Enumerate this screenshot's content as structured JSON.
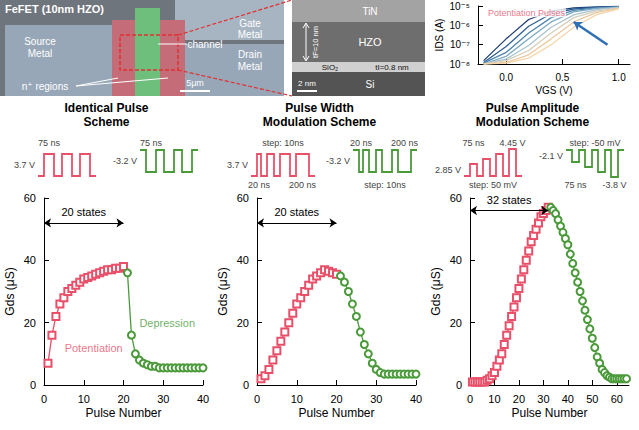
{
  "figure": {
    "sem_image": {
      "title": "FeFET (10nm HZO)",
      "gate": "Gate Metal",
      "channel": "channel",
      "source": "Source Metal",
      "drain": "Drain Metal",
      "n_regions": "n⁺ regions",
      "scale_bar": "5μm"
    },
    "tem_image": {
      "layers": [
        "TiN",
        "HZO",
        "SiO₂",
        "Si"
      ],
      "ferroelectric_thickness": "tF=10 nm",
      "interlayer_thickness": "tI=0.8 nm",
      "scale_bar": "2 nm"
    },
    "pulse_schemes": [
      {
        "title": "Identical Pulse Scheme",
        "scheme": "identical",
        "potentiation": {
          "color": "#e8506a",
          "amplitude": "3.7 V",
          "width": "75 ns"
        },
        "depression": {
          "color": "#4a9a3a",
          "amplitude": "-3.2 V",
          "width": "75 ns"
        }
      },
      {
        "title": "Pulse Width Modulation Scheme",
        "scheme": "width",
        "potentiation": {
          "color": "#e8506a",
          "amplitude": "3.7 V",
          "first_width": "20 ns",
          "last_width": "200 ns",
          "step": "step: 10ns"
        },
        "depression": {
          "color": "#4a9a3a",
          "amplitude": "-3.2 V",
          "first_width": "20 ns",
          "last_width": "200 ns",
          "step": "step: 10ns"
        }
      },
      {
        "title": "Pulse Amplitude Modulation Scheme",
        "scheme": "amplitude",
        "potentiation": {
          "color": "#e8506a",
          "amplitude": "2.85 V",
          "last_amplitude": "4.45 V",
          "width": "75 ns",
          "step": "step: 50 mV"
        },
        "depression": {
          "color": "#4a9a3a",
          "amplitude": "-2.1 V",
          "last_amplitude": "-3.8 V",
          "width": "75 ns",
          "step": "step: -50 mV"
        }
      }
    ]
  },
  "chart_data": [
    {
      "type": "line",
      "log": "y",
      "xlabel": "VGS (V)",
      "ylabel": "IDS (A)",
      "xlim": [
        -0.25,
        1.1
      ],
      "xticks": [
        {
          "value": 0,
          "label": "0.0"
        },
        0.5,
        {
          "value": 1,
          "label": "1.0"
        }
      ],
      "ylim": [
        1e-08,
        1e-05
      ],
      "yticks": [
        {
          "value": 1e-08,
          "label": "10⁻⁸"
        },
        {
          "value": 1e-07,
          "label": "10⁻⁷"
        },
        {
          "value": 1e-06,
          "label": "10⁻⁶"
        },
        {
          "value": 1e-05,
          "label": "10⁻⁵"
        }
      ],
      "grid": false,
      "x": [
        -0.2,
        0,
        0.2,
        0.4,
        0.6,
        0.8,
        1.0
      ],
      "series": [
        {
          "color": "#1f3f73",
          "values": [
            1.5e-08,
            2e-07,
            2e-06,
            5.5e-06,
            8e-06,
            9e-06,
            9.5e-06
          ]
        },
        {
          "color": "#2c5f93",
          "values": [
            1.2e-08,
            8e-08,
            9e-07,
            4e-06,
            7e-06,
            8.5e-06,
            9.2e-06
          ]
        },
        {
          "color": "#4f86b0",
          "values": [
            1.1e-08,
            4e-08,
            4e-07,
            2.5e-06,
            6e-06,
            8e-06,
            9e-06
          ]
        },
        {
          "color": "#7ba8c4",
          "values": [
            1e-08,
            2.5e-08,
            2e-07,
            1.5e-06,
            5e-06,
            7.5e-06,
            8.8e-06
          ]
        },
        {
          "color": "#a9c3cf",
          "values": [
            1e-08,
            1.8e-08,
            9e-08,
            8e-07,
            3.5e-06,
            6.5e-06,
            8.5e-06
          ]
        },
        {
          "color": "#d4cfb9",
          "values": [
            1e-08,
            1.5e-08,
            5e-08,
            4e-07,
            2.5e-06,
            5.5e-06,
            8e-06
          ]
        },
        {
          "color": "#eec9a0",
          "values": [
            1e-08,
            1.2e-08,
            3e-08,
            2e-07,
            1.5e-06,
            4.5e-06,
            7.5e-06
          ]
        },
        {
          "color": "#f5d6ad",
          "values": [
            1e-08,
            1.1e-08,
            2e-08,
            1e-07,
            8e-07,
            3.5e-06,
            7e-06
          ]
        }
      ],
      "annotations": [
        {
          "text": "Potentiation Pulses",
          "x": 0.18,
          "y": 4.5e-06,
          "color": "#e8506a",
          "arrow": {
            "x": [
              0.9,
              0.6
            ],
            "y": [
              1e-07,
              1.5e-06
            ],
            "color": "#2f6fb5"
          }
        }
      ]
    },
    {
      "type": "line",
      "xlabel": "Pulse Number",
      "ylabel": "Gds (μS)",
      "xlim": [
        0,
        40
      ],
      "xticks": [
        0,
        10,
        20,
        30,
        40
      ],
      "ylim": [
        0,
        60
      ],
      "yticks": [
        0,
        20,
        40,
        60
      ],
      "grid": false,
      "series": [
        {
          "color": "#e8506a",
          "marker": "square",
          "line_style": "solid",
          "x": [
            1,
            2,
            3,
            4,
            5,
            6,
            7,
            8,
            9,
            10,
            11,
            12,
            13,
            14,
            15,
            16,
            17,
            18,
            19,
            20
          ],
          "values": [
            7,
            16,
            22,
            26,
            28,
            30,
            31,
            32,
            33,
            34,
            34.5,
            35,
            35.5,
            36,
            36.5,
            37,
            37,
            37.5,
            37.5,
            38
          ]
        },
        {
          "color": "#4a9a3a",
          "marker": "circle",
          "line_style": "solid",
          "x": [
            21,
            22,
            23,
            24,
            25,
            26,
            27,
            28,
            29,
            30,
            31,
            32,
            33,
            34,
            35,
            36,
            37,
            38,
            39,
            40
          ],
          "values": [
            36,
            16,
            10,
            8,
            7,
            6.5,
            6,
            6,
            5.5,
            5.5,
            5.5,
            5.5,
            5.5,
            5.5,
            5.5,
            5.5,
            5.5,
            5.5,
            5.5,
            5.5
          ]
        }
      ],
      "annotations": [
        {
          "text": "20 states",
          "span": [
            0,
            20
          ],
          "y": 52
        },
        {
          "text": "Potentiation",
          "x": 12.5,
          "y": 12,
          "color": "#e8506a"
        },
        {
          "text": "Depression",
          "x": 31,
          "y": 20,
          "color": "#4a9a3a"
        }
      ]
    },
    {
      "type": "line",
      "xlabel": "Pulse Number",
      "ylabel": "Gds (μS)",
      "xlim": [
        0,
        40
      ],
      "xticks": [
        0,
        10,
        20,
        30,
        40
      ],
      "ylim": [
        0,
        60
      ],
      "yticks": [
        0,
        20,
        40,
        60
      ],
      "grid": false,
      "series": [
        {
          "color": "#e8506a",
          "marker": "square",
          "line_style": "solid",
          "x": [
            1,
            2,
            3,
            4,
            5,
            6,
            7,
            8,
            9,
            10,
            11,
            12,
            13,
            14,
            15,
            16,
            17,
            18,
            19,
            20
          ],
          "values": [
            2,
            3,
            5,
            8,
            11,
            14,
            17,
            20,
            23,
            26,
            28,
            30,
            32,
            34,
            35,
            36,
            37,
            36.5,
            36,
            35.5
          ]
        },
        {
          "color": "#4a9a3a",
          "marker": "circle",
          "line_style": "solid",
          "x": [
            21,
            22,
            23,
            24,
            25,
            26,
            27,
            28,
            29,
            30,
            31,
            32,
            33,
            34,
            35,
            36,
            37,
            38,
            39,
            40
          ],
          "values": [
            35,
            33,
            30,
            26,
            22,
            17,
            13,
            10,
            7,
            5,
            4,
            3.5,
            3.5,
            3.5,
            3.5,
            3.5,
            3.5,
            3.5,
            3.5,
            3.5
          ]
        }
      ],
      "annotations": [
        {
          "text": "20 states",
          "span": [
            0,
            20
          ],
          "y": 52
        }
      ]
    },
    {
      "type": "line",
      "xlabel": "Pulse Number",
      "ylabel": "Gds (μS)",
      "xlim": [
        0,
        65
      ],
      "xticks": [
        0,
        10,
        20,
        30,
        40,
        50,
        60
      ],
      "ylim": [
        0,
        60
      ],
      "yticks": [
        0,
        20,
        40,
        60
      ],
      "grid": false,
      "series": [
        {
          "color": "#e8506a",
          "marker": "square",
          "line_style": "solid",
          "x": [
            1,
            2,
            3,
            4,
            5,
            6,
            7,
            8,
            9,
            10,
            11,
            12,
            13,
            14,
            15,
            16,
            17,
            18,
            19,
            20,
            21,
            22,
            23,
            24,
            25,
            26,
            27,
            28,
            29,
            30,
            31,
            32
          ],
          "values": [
            1,
            1,
            1,
            1,
            1,
            1,
            1.5,
            2,
            3,
            4,
            6,
            8,
            10,
            13,
            16,
            19,
            22,
            25,
            28,
            31,
            34,
            37,
            40,
            43,
            46,
            48,
            50,
            52,
            54,
            55,
            56,
            57
          ]
        },
        {
          "color": "#4a9a3a",
          "marker": "circle",
          "line_style": "solid",
          "x": [
            33,
            34,
            35,
            36,
            37,
            38,
            39,
            40,
            41,
            42,
            43,
            44,
            45,
            46,
            47,
            48,
            49,
            50,
            51,
            52,
            53,
            54,
            55,
            56,
            57,
            58,
            59,
            60,
            61,
            62,
            63,
            64
          ],
          "values": [
            57,
            56,
            55,
            53,
            51,
            49,
            47,
            45,
            42,
            39,
            36,
            33,
            30,
            27,
            24,
            21,
            18,
            15,
            12,
            9,
            7,
            5,
            4,
            3,
            2.5,
            2,
            2,
            2,
            2,
            2,
            2,
            2
          ]
        }
      ],
      "annotations": [
        {
          "text": "32 states",
          "span": [
            0,
            32
          ],
          "y": 56
        }
      ]
    }
  ]
}
